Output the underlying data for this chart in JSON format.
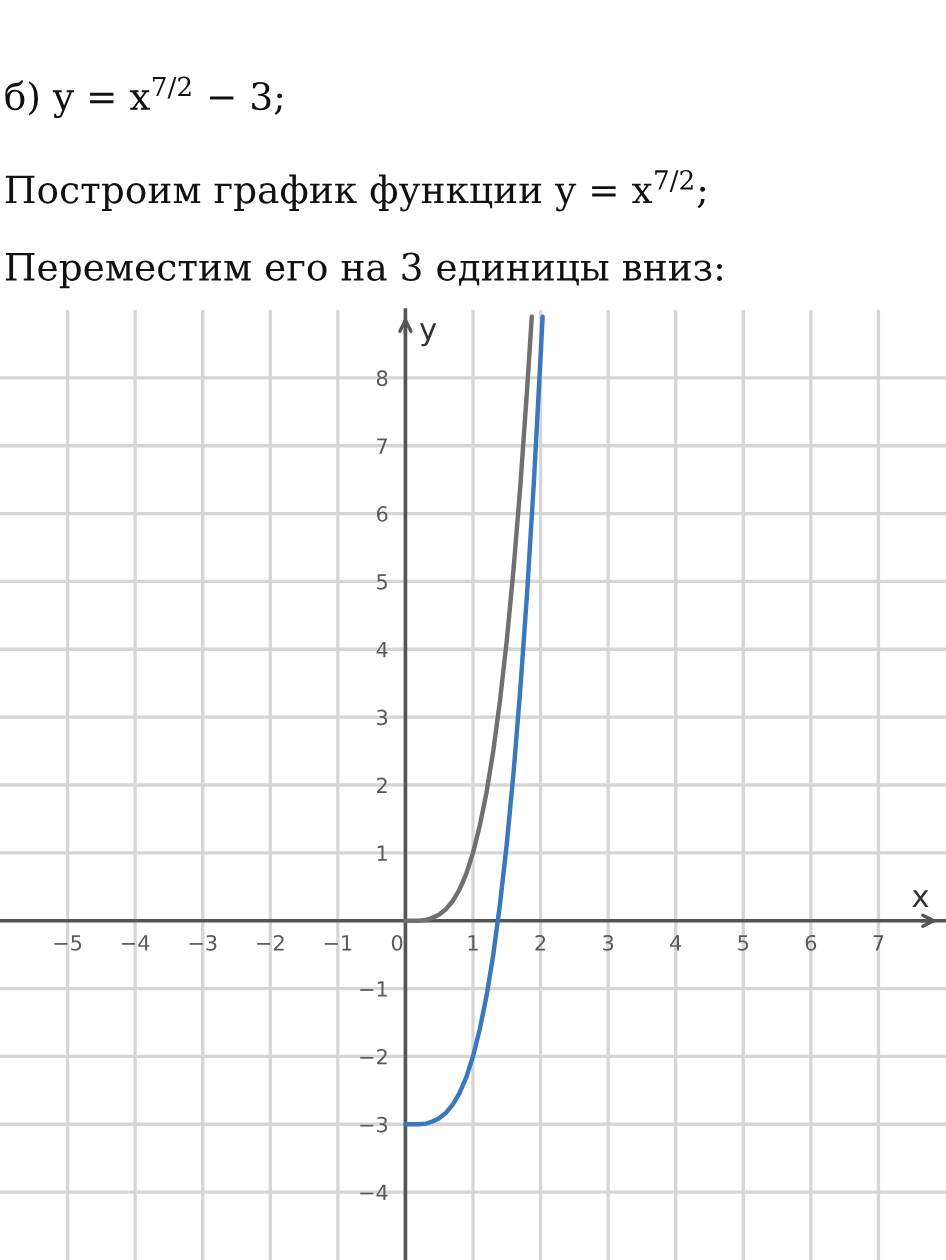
{
  "chart_data": {
    "type": "line",
    "title": "б) y = x$^{7/2}$ − 3;",
    "subtitle": "Построим график функции y = x$^{7/2}$;\nПереместим его на 3 единицы вниз:",
    "xlabel": "x",
    "ylabel": "y",
    "series": [
      {
        "color": "#707070",
        "x": [
          0,
          0.2,
          0.3,
          0.4,
          0.5,
          0.6,
          0.7,
          0.8,
          0.9,
          1.0,
          1.1,
          1.2,
          1.3,
          1.4,
          1.5,
          1.6,
          1.7,
          1.8,
          1.87
        ],
        "values": [
          0,
          0,
          0.01,
          0.04,
          0.09,
          0.17,
          0.29,
          0.46,
          0.69,
          1,
          1.4,
          1.89,
          2.5,
          3.25,
          4.13,
          5.18,
          6.4,
          7.82,
          8.9
        ]
      },
      {
        "color": "#3a78be",
        "x": [
          0,
          0.2,
          0.3,
          0.4,
          0.5,
          0.6,
          0.7,
          0.8,
          0.9,
          1.0,
          1.1,
          1.2,
          1.3,
          1.4,
          1.5,
          1.6,
          1.7,
          1.8,
          1.9,
          2.0,
          2.03
        ],
        "values": [
          -3,
          -3,
          -2.99,
          -2.96,
          -2.91,
          -2.83,
          -2.71,
          -2.54,
          -2.31,
          -2,
          -1.6,
          -1.11,
          -0.5,
          0.25,
          1.13,
          2.18,
          3.41,
          4.82,
          6.45,
          8.31,
          8.9
        ]
      }
    ],
    "xlim": [
      -6,
      8
    ],
    "ylim": [
      -5,
      9
    ],
    "xticks": [
      -5,
      -4,
      -3,
      -2,
      -1,
      0,
      1,
      2,
      3,
      4,
      5,
      6,
      7
    ],
    "yticks": [
      -4,
      -3,
      -2,
      -1,
      1,
      2,
      3,
      4,
      5,
      6,
      7,
      8
    ],
    "grid": true,
    "marker": "none",
    "line_style": "solid"
  }
}
